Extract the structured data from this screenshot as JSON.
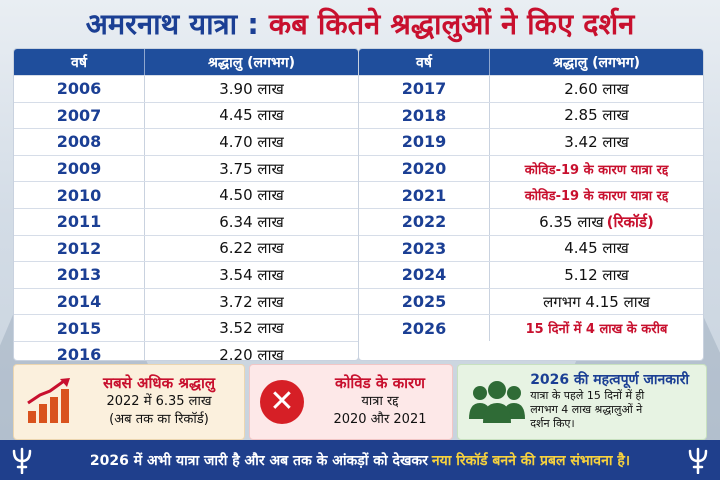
{
  "title": {
    "part1": "अमरनाथ यात्रा : ",
    "part2": "कब कितने श्रद्धालुओं ने किए दर्शन"
  },
  "table_headers": {
    "year": "वर्ष",
    "devotees": "श्रद्धालु (लगभग)"
  },
  "left_rows": [
    {
      "year": "2006",
      "value": "3.90 लाख"
    },
    {
      "year": "2007",
      "value": "4.45 लाख"
    },
    {
      "year": "2008",
      "value": "4.70 लाख"
    },
    {
      "year": "2009",
      "value": "3.75 लाख"
    },
    {
      "year": "2010",
      "value": "4.50 लाख"
    },
    {
      "year": "2011",
      "value": "6.34 लाख"
    },
    {
      "year": "2012",
      "value": "6.22 लाख"
    },
    {
      "year": "2013",
      "value": "3.54 लाख"
    },
    {
      "year": "2014",
      "value": "3.72 लाख"
    },
    {
      "year": "2015",
      "value": "3.52 लाख"
    },
    {
      "year": "2016",
      "value": "2.20 लाख"
    }
  ],
  "right_rows": [
    {
      "year": "2017",
      "value": "2.60 लाख",
      "highlight": false
    },
    {
      "year": "2018",
      "value": "2.85 लाख",
      "highlight": false
    },
    {
      "year": "2019",
      "value": "3.42 लाख",
      "highlight": false
    },
    {
      "year": "2020",
      "value": "कोविड-19 के कारण यात्रा रद्द",
      "highlight": true
    },
    {
      "year": "2021",
      "value": "कोविड-19 के कारण यात्रा रद्द",
      "highlight": true
    },
    {
      "year": "2022",
      "value": "6.35 लाख",
      "tag": "(रिकॉर्ड)",
      "highlight": false
    },
    {
      "year": "2023",
      "value": "4.45 लाख",
      "highlight": false
    },
    {
      "year": "2024",
      "value": "5.12 लाख",
      "highlight": false
    },
    {
      "year": "2025",
      "value": "लगभग 4.15 लाख",
      "highlight": false
    },
    {
      "year": "2026",
      "value": "15 दिनों में 4 लाख के करीब",
      "highlight": true
    }
  ],
  "cards": {
    "highest": {
      "icon": "bar-chart-arrow-icon",
      "title": "सबसे अधिक श्रद्धालु",
      "line1": "2022 में 6.35 लाख",
      "line2": "(अब तक का रिकॉर्ड)"
    },
    "covid": {
      "icon": "x-circle-icon",
      "title": "कोविड के कारण",
      "line1": "यात्रा रद्द",
      "line2": "2020 और 2021"
    },
    "info2026": {
      "icon": "people-group-icon",
      "title": "2026 की महत्वपूर्ण जानकारी",
      "line1": "यात्रा के पहले 15 दिनों में ही",
      "line2": "लगभग 4 लाख श्रद्धालुओं ने",
      "line3": "दर्शन किए।"
    }
  },
  "footer": {
    "text": "2026 में अभी यात्रा जारी है और अब तक के आंकड़ों को देखकर",
    "highlight": "नया रिकॉर्ड बनने की प्रबल संभावना है।"
  },
  "colors": {
    "navy": "#1f4e9c",
    "title_blue": "#1b3f94",
    "accent_red": "#c8102e",
    "footer_bg": "#1f3f8c",
    "footer_highlight": "#f7d23e"
  }
}
